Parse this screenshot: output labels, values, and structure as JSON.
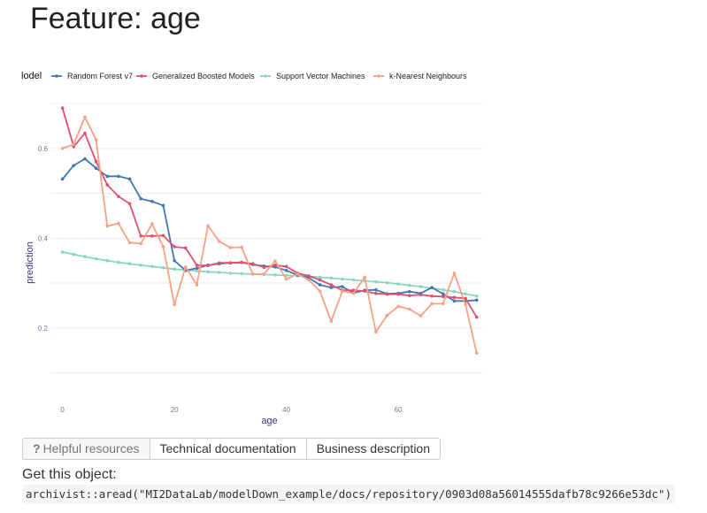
{
  "page": {
    "title": "Feature: age",
    "get_object_label": "Get this object:",
    "code": "archivist::aread(\"MI2DataLab/modelDown_example/docs/repository/0903d08a56014555dafb78c9266e53dc\")"
  },
  "buttons": [
    {
      "icon": "question-icon",
      "glyph": "?",
      "label": "Helpful resources"
    },
    {
      "label": "Technical documentation"
    },
    {
      "label": "Business description"
    }
  ],
  "chart_data": {
    "type": "line",
    "title": "",
    "xlabel": "age",
    "ylabel": "prediction",
    "xlim": [
      -2,
      75
    ],
    "ylim": [
      0.03,
      0.72
    ],
    "x_ticks": [
      0,
      20,
      40,
      60
    ],
    "y_ticks": [
      0.2,
      0.4,
      0.6
    ],
    "grid": true,
    "legend_position": "top",
    "legend_title": "lodel",
    "x": [
      0,
      2,
      4,
      6,
      8,
      10,
      12,
      14,
      16,
      18,
      20,
      22,
      24,
      26,
      28,
      30,
      32,
      34,
      36,
      38,
      40,
      42,
      44,
      46,
      48,
      50,
      52,
      54,
      56,
      58,
      60,
      62,
      64,
      66,
      68,
      70,
      72,
      74
    ],
    "series": [
      {
        "name": "Random Forest v7",
        "color": "#3f78b5",
        "values": [
          0.532,
          0.562,
          0.577,
          0.556,
          0.538,
          0.538,
          0.532,
          0.488,
          0.482,
          0.473,
          0.35,
          0.328,
          0.333,
          0.34,
          0.343,
          0.345,
          0.346,
          0.341,
          0.338,
          0.336,
          0.328,
          0.318,
          0.312,
          0.296,
          0.29,
          0.292,
          0.278,
          0.284,
          0.285,
          0.276,
          0.277,
          0.281,
          0.277,
          0.29,
          0.276,
          0.26,
          0.26,
          0.262
        ]
      },
      {
        "name": "Generalized Boosted Models",
        "color": "#e0506e",
        "values": [
          0.69,
          0.604,
          0.634,
          0.571,
          0.519,
          0.493,
          0.477,
          0.405,
          0.405,
          0.406,
          0.381,
          0.378,
          0.34,
          0.339,
          0.345,
          0.345,
          0.346,
          0.343,
          0.335,
          0.34,
          0.337,
          0.322,
          0.316,
          0.307,
          0.296,
          0.284,
          0.284,
          0.282,
          0.277,
          0.275,
          0.275,
          0.272,
          0.274,
          0.271,
          0.27,
          0.268,
          0.266,
          0.224
        ]
      },
      {
        "name": "Support Vector Machines",
        "color": "#88d8bf",
        "values": [
          0.369,
          0.364,
          0.359,
          0.354,
          0.35,
          0.346,
          0.343,
          0.34,
          0.337,
          0.334,
          0.331,
          0.329,
          0.327,
          0.325,
          0.324,
          0.322,
          0.321,
          0.32,
          0.319,
          0.318,
          0.317,
          0.316,
          0.315,
          0.313,
          0.311,
          0.309,
          0.307,
          0.305,
          0.303,
          0.301,
          0.298,
          0.295,
          0.292,
          0.289,
          0.285,
          0.281,
          0.276,
          0.271
        ]
      },
      {
        "name": "k-Nearest Neighbours",
        "color": "#f5a184",
        "values": [
          0.6,
          0.609,
          0.67,
          0.619,
          0.427,
          0.433,
          0.39,
          0.388,
          0.432,
          0.381,
          0.252,
          0.336,
          0.296,
          0.428,
          0.393,
          0.379,
          0.38,
          0.32,
          0.32,
          0.349,
          0.309,
          0.32,
          0.307,
          0.282,
          0.215,
          0.282,
          0.277,
          0.313,
          0.191,
          0.228,
          0.248,
          0.242,
          0.227,
          0.254,
          0.254,
          0.322,
          0.253,
          0.144
        ]
      }
    ]
  }
}
